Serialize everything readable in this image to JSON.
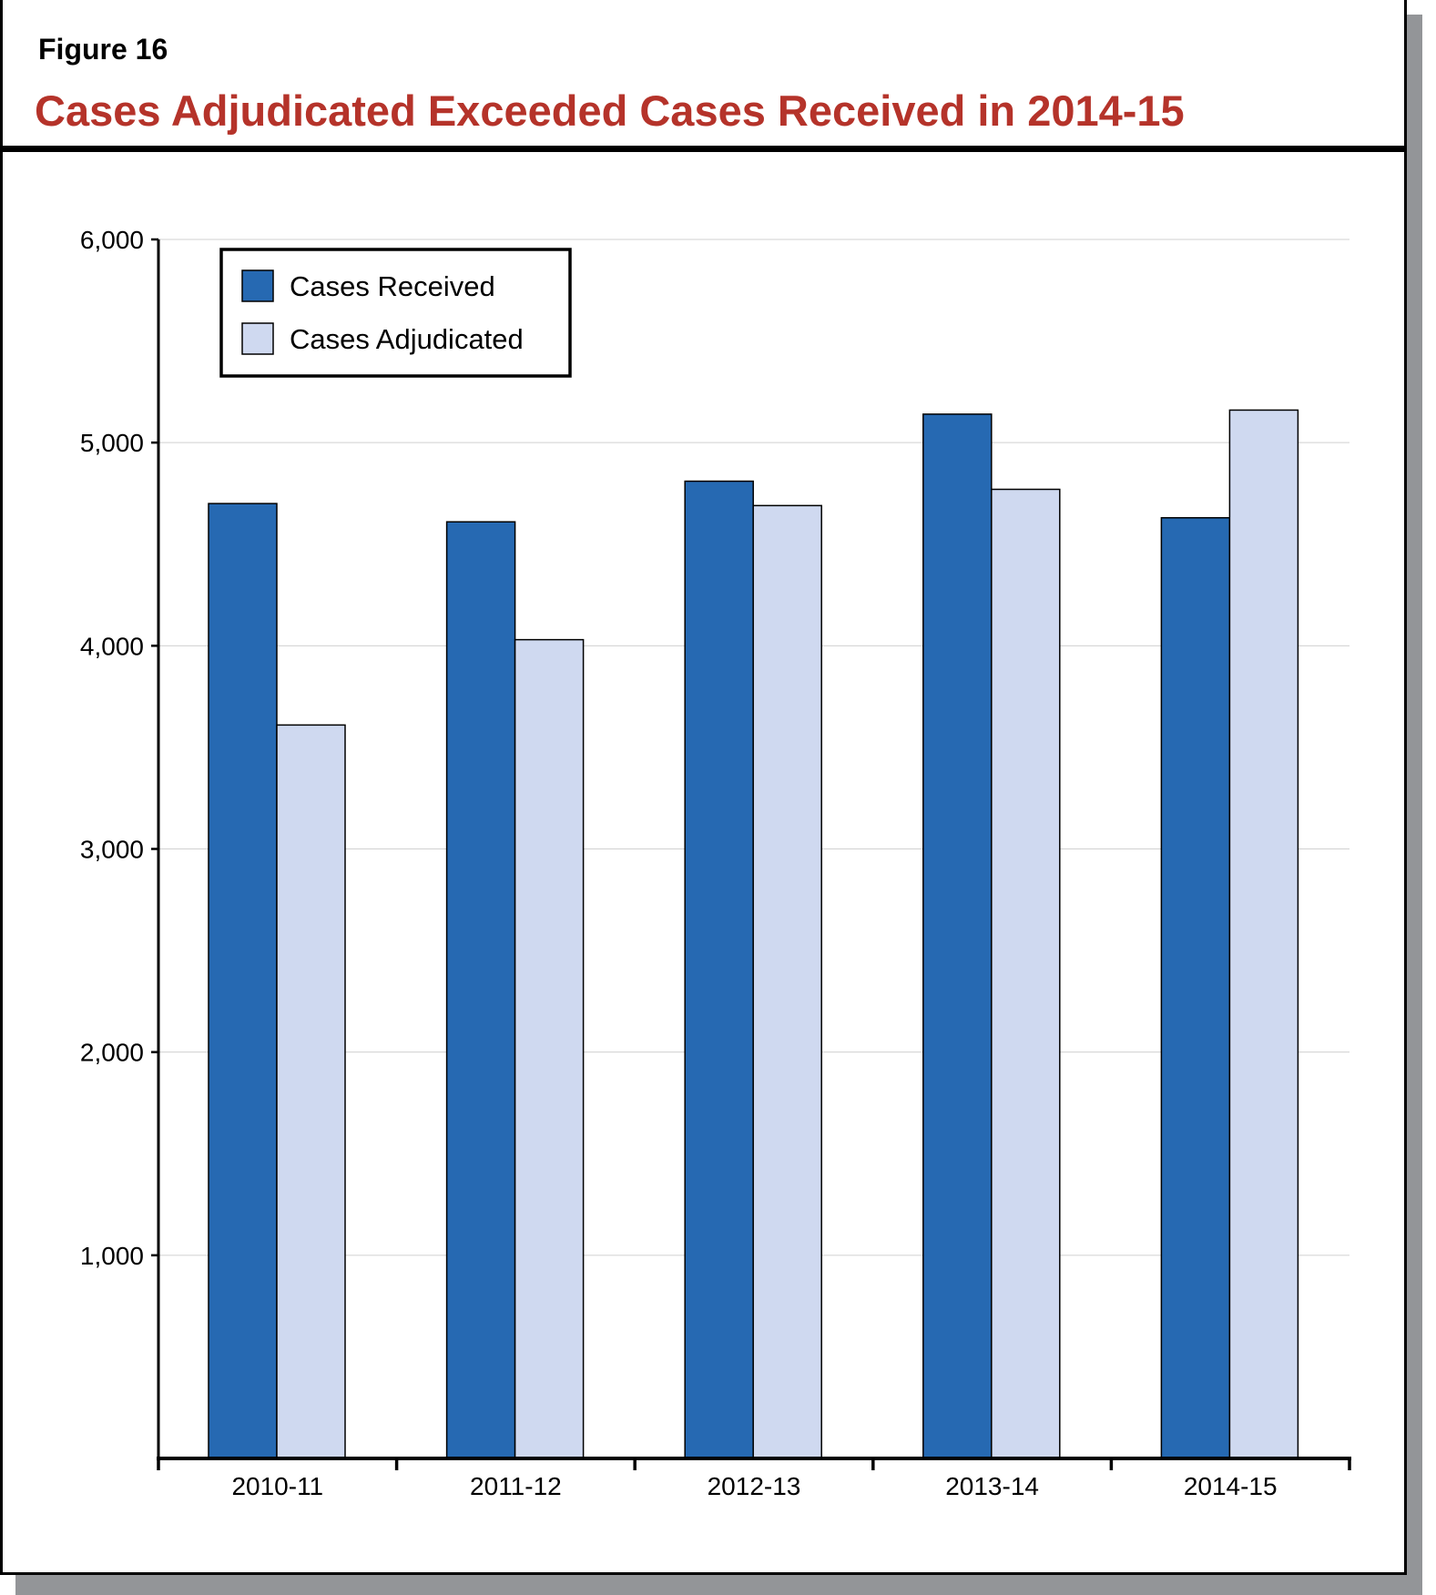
{
  "figure_label": "Figure 16",
  "title": "Cases Adjudicated Exceeded Cases Received in 2014-15",
  "colors": {
    "received": "#2669b2",
    "adjudicated": "#cfd9f0",
    "title": "#b5332a"
  },
  "chart_data": {
    "type": "bar",
    "title": "Cases Adjudicated Exceeded Cases Received in 2014-15",
    "categories": [
      "2010-11",
      "2011-12",
      "2012-13",
      "2013-14",
      "2014-15"
    ],
    "series": [
      {
        "name": "Cases Received",
        "values": [
          4700,
          4610,
          4810,
          5140,
          4630
        ]
      },
      {
        "name": "Cases Adjudicated",
        "values": [
          3610,
          4030,
          4690,
          4770,
          5160
        ]
      }
    ],
    "ylim": [
      0,
      6000
    ],
    "yticks": [
      "1,000",
      "2,000",
      "3,000",
      "4,000",
      "5,000",
      "6,000"
    ],
    "ytick_values": [
      1000,
      2000,
      3000,
      4000,
      5000,
      6000
    ],
    "grid": true,
    "legend": "top-left",
    "xlabel": "",
    "ylabel": ""
  }
}
